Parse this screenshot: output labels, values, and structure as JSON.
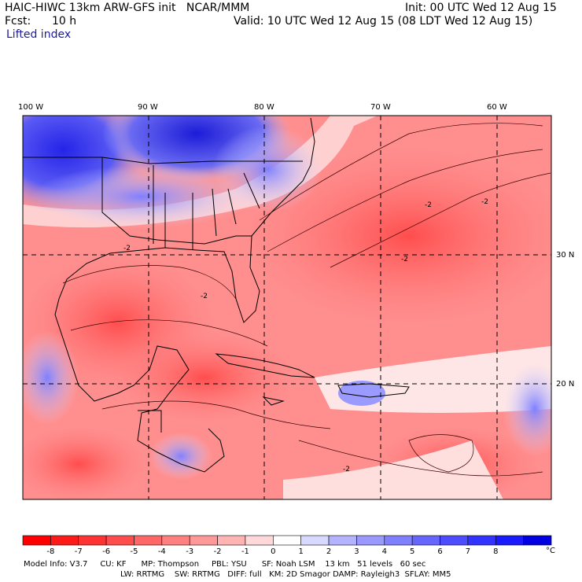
{
  "header": {
    "title": "HAIC-HIWC 13km ARW-GFS init   NCAR/MMM",
    "init": "Init: 00 UTC Wed 12 Aug 15",
    "fcst_label": "Fcst:",
    "fcst_value": "10 h",
    "valid": "Valid: 10 UTC Wed 12 Aug 15 (08 LDT Wed 12 Aug 15)",
    "field": "Lifted index"
  },
  "map": {
    "lon_labels": [
      "100 W",
      "90 W",
      "80 W",
      "70 W",
      "60 W"
    ],
    "lat_labels": [
      "30 N",
      "20 N"
    ],
    "contour_labels": [
      "-2",
      "-2",
      "-2",
      "-2",
      "-2",
      "-2"
    ]
  },
  "colorbar": {
    "ticks": [
      "-8",
      "-7",
      "-6",
      "-5",
      "-4",
      "-3",
      "-2",
      "-1",
      "0",
      "1",
      "2",
      "3",
      "4",
      "5",
      "6",
      "7",
      "8"
    ],
    "unit": "°C",
    "colors": [
      "#ff0000",
      "#ff1a1a",
      "#ff3333",
      "#ff4d4d",
      "#ff6666",
      "#ff8080",
      "#ff9999",
      "#ffb3b3",
      "#ffd9d9",
      "#ffffff",
      "#d9d9ff",
      "#b3b3ff",
      "#9999ff",
      "#8080ff",
      "#6666ff",
      "#4d4dff",
      "#3333ff",
      "#1a1aff",
      "#0000e0"
    ]
  },
  "footer": {
    "line1": "Model Info: V3.7     CU: KF      MP: Thompson     PBL: YSU      SF: Noah LSM    13 km   51 levels   60 sec",
    "line2": "LW: RRTMG    SW: RRTMG   DIFF: full   KM: 2D Smagor DAMP: Rayleigh3  SFLAY: MM5"
  }
}
